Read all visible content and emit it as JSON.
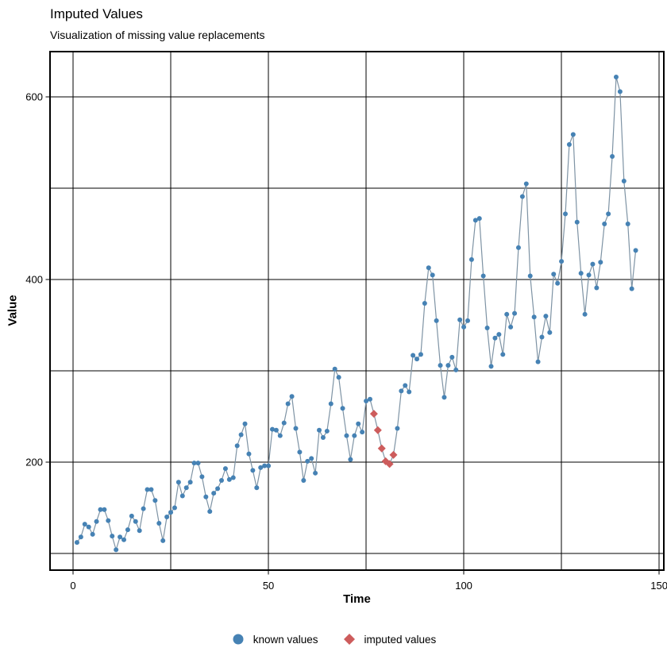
{
  "header": {
    "title": "Imputed Values",
    "subtitle": "Visualization of missing value replacements"
  },
  "legend": {
    "items": [
      {
        "label": "known values",
        "marker": "circle"
      },
      {
        "label": "imputed values",
        "marker": "diamond"
      }
    ]
  },
  "chart_data": {
    "type": "scatter",
    "title": "Imputed Values",
    "subtitle": "Visualization of missing value replacements",
    "xlabel": "Time",
    "ylabel": "Value",
    "x_start": 1,
    "x_step": 1,
    "n_points": 144,
    "values": [
      112,
      118,
      132,
      129,
      121,
      135,
      148,
      148,
      136,
      119,
      104,
      118,
      115,
      126,
      141,
      135,
      125,
      149,
      170,
      170,
      158,
      133,
      114,
      140,
      145,
      150,
      178,
      163,
      172,
      178,
      199,
      199,
      184,
      162,
      146,
      166,
      171,
      180,
      193,
      181,
      183,
      218,
      230,
      242,
      209,
      191,
      172,
      194,
      196,
      196,
      236,
      235,
      229,
      243,
      264,
      272,
      237,
      211,
      180,
      201,
      204,
      188,
      235,
      227,
      234,
      264,
      302,
      293,
      259,
      229,
      203,
      229,
      242,
      233,
      267,
      269,
      253,
      235,
      215,
      201,
      198,
      208,
      237,
      278,
      284,
      277,
      317,
      313,
      318,
      374,
      413,
      405,
      355,
      306,
      271,
      306,
      315,
      301,
      356,
      348,
      355,
      422,
      465,
      467,
      404,
      347,
      305,
      336,
      340,
      318,
      362,
      348,
      363,
      435,
      491,
      505,
      404,
      359,
      310,
      337,
      360,
      342,
      406,
      396,
      420,
      472,
      548,
      559,
      463,
      407,
      362,
      405,
      417,
      391,
      419,
      461,
      472,
      535,
      622,
      606,
      508,
      461,
      390,
      432
    ],
    "imputed_times": [
      77,
      78,
      79,
      80,
      81,
      82
    ],
    "imputed_values": [
      253,
      235,
      215,
      201,
      198,
      208
    ],
    "xlim": [
      -5.9,
      151.2
    ],
    "ylim": [
      81.7,
      649.8
    ],
    "x_major_ticks": [
      0,
      50,
      100,
      150
    ],
    "x_minor_gridlines": [
      25,
      75,
      125
    ],
    "y_major_ticks": [
      200,
      400,
      600
    ],
    "y_minor_gridlines": [
      100,
      300,
      500
    ],
    "grid": "black major and minor gridlines on white panel, full panel border",
    "legend_position": "bottom-center",
    "line_connects_all_points": true,
    "colors": {
      "known_points": "#4682B4",
      "imputed_points": "#CD5C5C",
      "line": "#7E93A4",
      "grid": "#000000",
      "panel_border": "#000000",
      "text": "#000000"
    }
  }
}
